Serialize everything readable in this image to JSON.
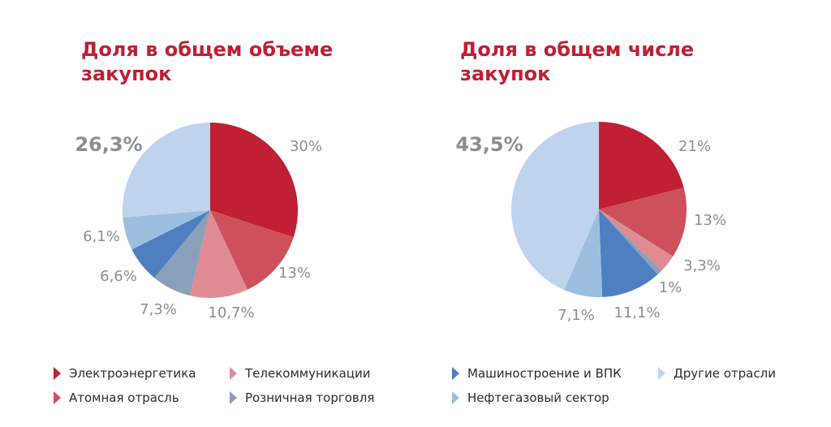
{
  "titles": {
    "left": "Доля в общем объеме закупок",
    "right": "Доля в общем числе закупок"
  },
  "legend": [
    {
      "label": "Электроэнергетика",
      "color": "#c01f34"
    },
    {
      "label": "Атомная отрасль",
      "color": "#ce505c"
    },
    {
      "label": "Телекоммуникации",
      "color": "#e08b93"
    },
    {
      "label": "Розничная торговля",
      "color": "#8aa0b8"
    },
    {
      "label": "Машиностроение и ВПК",
      "color": "#4d7fc1"
    },
    {
      "label": "Нефтегазовый сектор",
      "color": "#9cbfe0"
    },
    {
      "label": "Другие отрасли",
      "color": "#bed4ec"
    }
  ],
  "chart_data": [
    {
      "type": "pie",
      "title": "Доля в общем объеме закупок",
      "slices": [
        {
          "name": "Электроэнергетика",
          "value": 30,
          "label": "30%"
        },
        {
          "name": "Атомная отрасль",
          "value": 13,
          "label": "13%"
        },
        {
          "name": "Телекоммуникации",
          "value": 10.7,
          "label": "10,7%"
        },
        {
          "name": "Розничная торговля",
          "value": 7.3,
          "label": "7,3%"
        },
        {
          "name": "Машиностроение и ВПК",
          "value": 6.6,
          "label": "6,6%"
        },
        {
          "name": "Нефтегазовый сектор",
          "value": 6.1,
          "label": "6,1%"
        },
        {
          "name": "Другие отрасли",
          "value": 26.3,
          "label": "26,3%"
        }
      ]
    },
    {
      "type": "pie",
      "title": "Доля в общем числе закупок",
      "slices": [
        {
          "name": "Электроэнергетика",
          "value": 21,
          "label": "21%"
        },
        {
          "name": "Атомная отрасль",
          "value": 13,
          "label": "13%"
        },
        {
          "name": "Телекоммуникации",
          "value": 3.3,
          "label": "3,3%"
        },
        {
          "name": "Розничная торговля",
          "value": 1,
          "label": "1%"
        },
        {
          "name": "Машиностроение и ВПК",
          "value": 11.1,
          "label": "11,1%"
        },
        {
          "name": "Нефтегазовый сектор",
          "value": 7.1,
          "label": "7,1%"
        },
        {
          "name": "Другие отрасли",
          "value": 43.5,
          "label": "43,5%"
        }
      ]
    }
  ]
}
